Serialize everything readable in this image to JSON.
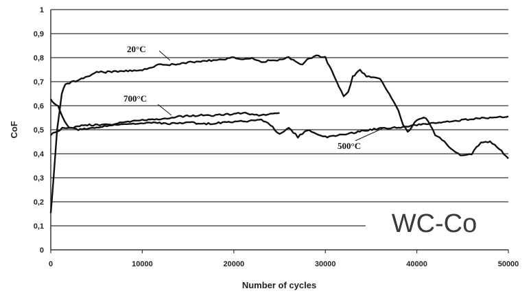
{
  "chart_data": {
    "type": "line",
    "title": "",
    "xlabel": "Number of cycles",
    "ylabel": "CoF",
    "xlim": [
      0,
      50000
    ],
    "ylim": [
      0,
      1
    ],
    "grid": true,
    "x_ticks": [
      0,
      10000,
      20000,
      30000,
      40000,
      50000
    ],
    "x_tick_labels": [
      "0",
      "10000",
      "20000",
      "30000",
      "40000",
      "50000"
    ],
    "y_ticks": [
      0,
      0.1,
      0.2,
      0.3,
      0.4,
      0.5,
      0.6,
      0.7,
      0.8,
      0.9,
      1
    ],
    "y_tick_labels": [
      "0",
      "0,1",
      "0,2",
      "0,3",
      "0,4",
      "0,5",
      "0,6",
      "0,7",
      "0,8",
      "0,9",
      "1"
    ],
    "annotation": "WC-Co",
    "series": [
      {
        "name": "20°C",
        "color": "#111111",
        "x": [
          0,
          300,
          700,
          1200,
          1600,
          2500,
          4000,
          5000,
          6000,
          8000,
          10000,
          11000,
          12000,
          13000,
          15000,
          18000,
          20000,
          21000,
          22000,
          23000,
          24000,
          25000,
          26000,
          27000,
          27500,
          28000,
          29000,
          30000,
          31000,
          32000,
          32500,
          33000,
          33800,
          34500,
          35000,
          36000,
          37000,
          38000,
          38500,
          39000,
          40000,
          41000,
          42000,
          43000,
          44000,
          45000,
          46000,
          47000,
          48000,
          49000,
          50000
        ],
        "y": [
          0.15,
          0.3,
          0.5,
          0.65,
          0.69,
          0.7,
          0.72,
          0.74,
          0.74,
          0.745,
          0.75,
          0.76,
          0.775,
          0.77,
          0.78,
          0.79,
          0.8,
          0.795,
          0.8,
          0.78,
          0.79,
          0.79,
          0.8,
          0.78,
          0.77,
          0.79,
          0.81,
          0.8,
          0.72,
          0.64,
          0.66,
          0.72,
          0.75,
          0.72,
          0.72,
          0.71,
          0.65,
          0.58,
          0.52,
          0.49,
          0.54,
          0.55,
          0.48,
          0.45,
          0.41,
          0.39,
          0.4,
          0.45,
          0.45,
          0.42,
          0.38
        ]
      },
      {
        "name": "700°C",
        "color": "#111111",
        "x": [
          0,
          500,
          1000,
          1500,
          2500,
          4000,
          6000,
          8000,
          10000,
          12000,
          13000,
          14000,
          16000,
          18000,
          20000,
          21000,
          22000,
          23000,
          24000,
          25000
        ],
        "y": [
          0.48,
          0.49,
          0.5,
          0.51,
          0.51,
          0.52,
          0.52,
          0.53,
          0.54,
          0.545,
          0.55,
          0.555,
          0.56,
          0.56,
          0.565,
          0.57,
          0.565,
          0.56,
          0.565,
          0.57
        ]
      },
      {
        "name": "500°C",
        "color": "#111111",
        "x": [
          0,
          300,
          800,
          1300,
          2000,
          3000,
          5000,
          7000,
          9000,
          11000,
          13000,
          15000,
          17000,
          19000,
          21000,
          23000,
          24000,
          25000,
          26000,
          27000,
          28000,
          29000,
          30000,
          32000,
          34000,
          36000,
          38000,
          40000,
          42000,
          44000,
          46000,
          48000,
          50000
        ],
        "y": [
          0.63,
          0.61,
          0.6,
          0.55,
          0.51,
          0.5,
          0.51,
          0.52,
          0.525,
          0.53,
          0.525,
          0.53,
          0.525,
          0.53,
          0.535,
          0.54,
          0.52,
          0.48,
          0.51,
          0.47,
          0.5,
          0.48,
          0.47,
          0.48,
          0.495,
          0.505,
          0.51,
          0.52,
          0.53,
          0.535,
          0.545,
          0.55,
          0.555
        ]
      }
    ]
  }
}
